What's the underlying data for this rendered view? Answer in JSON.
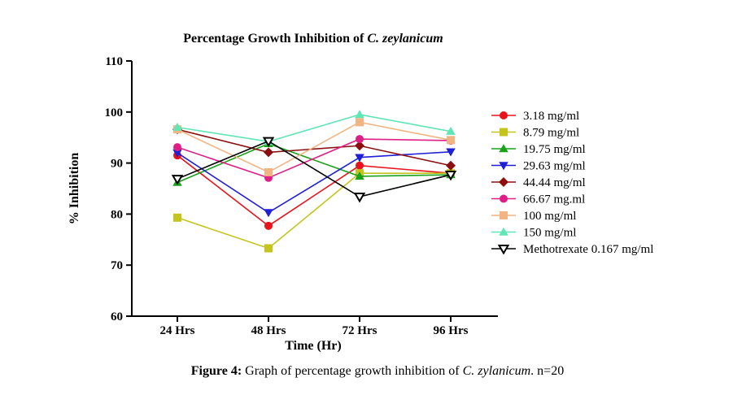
{
  "chart_data": {
    "type": "line",
    "title_prefix": "Percentage Growth Inhibition of ",
    "title_species": "C. zeylanicum",
    "xlabel": "Time (Hr)",
    "ylabel": "% Inhibition",
    "categories": [
      "24 Hrs",
      "48 Hrs",
      "72 Hrs",
      "96 Hrs"
    ],
    "ylim": [
      60,
      110
    ],
    "yticks": [
      60,
      70,
      80,
      90,
      100,
      110
    ],
    "grid": false,
    "legend_position": "right",
    "series": [
      {
        "name": "3.18 mg/ml",
        "color": "#e8141b",
        "marker": "circle",
        "values": [
          91.5,
          77.7,
          89.5,
          88.0
        ]
      },
      {
        "name": "8.79 mg/ml",
        "color": "#c4c41c",
        "marker": "square",
        "values": [
          79.3,
          73.3,
          88.0,
          88.0
        ]
      },
      {
        "name": "19.75 mg/ml",
        "color": "#1aa31a",
        "marker": "triangle-up",
        "values": [
          86.2,
          93.8,
          87.4,
          87.7
        ]
      },
      {
        "name": "29.63 mg/ml",
        "color": "#1f1fd6",
        "marker": "triangle-down",
        "values": [
          92.0,
          80.3,
          91.1,
          92.2
        ]
      },
      {
        "name": "44.44 mg/ml",
        "color": "#8b0f0f",
        "marker": "diamond",
        "values": [
          96.6,
          92.1,
          93.4,
          89.5
        ]
      },
      {
        "name": "66.67 mg.ml",
        "color": "#e01f86",
        "marker": "circle",
        "values": [
          93.1,
          87.1,
          94.7,
          94.4
        ]
      },
      {
        "name": "100 mg/ml",
        "color": "#f2b482",
        "marker": "square",
        "values": [
          96.6,
          88.2,
          98.0,
          94.5
        ]
      },
      {
        "name": "150 mg/ml",
        "color": "#5ee6b4",
        "marker": "triangle-up",
        "values": [
          97.0,
          94.2,
          99.5,
          96.2
        ]
      },
      {
        "name": "Methotrexate 0.167 mg/ml",
        "color": "#000000",
        "marker": "triangle-down-open",
        "values": [
          86.9,
          94.3,
          83.4,
          87.7
        ]
      }
    ]
  },
  "caption": {
    "label": "Figure 4:",
    "text_before": " Graph of percentage growth inhibition of ",
    "species": "C. zylanicum",
    "text_after": ". n=20"
  }
}
